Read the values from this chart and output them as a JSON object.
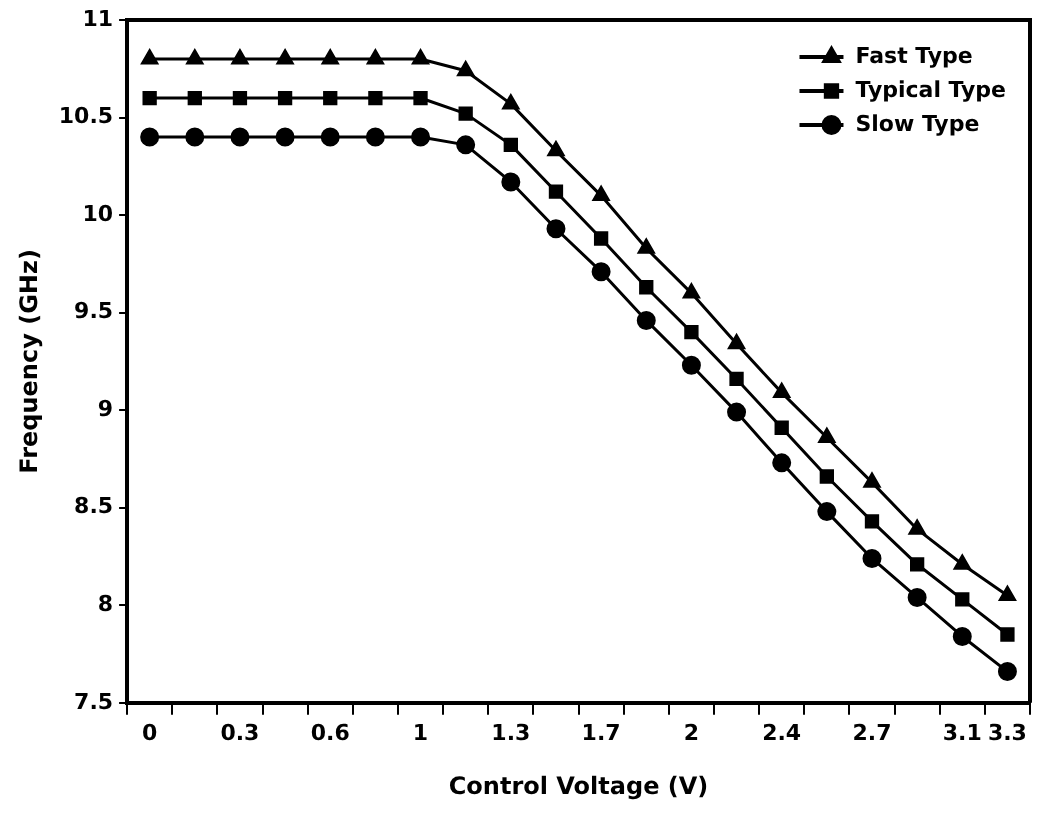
{
  "chart_data": {
    "type": "line",
    "xlabel": "Control Voltage (V)",
    "ylabel": "Frequency (GHz)",
    "categories": [
      "0",
      null,
      "0.3",
      null,
      "0.6",
      null,
      "1",
      null,
      "1.3",
      null,
      "1.7",
      null,
      "2",
      null,
      "2.4",
      null,
      "2.7",
      null,
      "3.1",
      "3.3"
    ],
    "series": [
      {
        "name": "Fast Type",
        "color": "#000000",
        "marker": "triangle",
        "values": [
          10.8,
          10.8,
          10.8,
          10.8,
          10.8,
          10.8,
          10.8,
          10.74,
          10.57,
          10.33,
          10.1,
          9.83,
          9.6,
          9.34,
          9.09,
          8.86,
          8.63,
          8.39,
          8.21,
          8.05
        ]
      },
      {
        "name": "Typical Type",
        "color": "#000000",
        "marker": "square",
        "values": [
          10.6,
          10.6,
          10.6,
          10.6,
          10.6,
          10.6,
          10.6,
          10.52,
          10.36,
          10.12,
          9.88,
          9.63,
          9.4,
          9.16,
          8.91,
          8.66,
          8.43,
          8.21,
          8.03,
          7.85
        ]
      },
      {
        "name": "Slow Type",
        "color": "#000000",
        "marker": "circle",
        "values": [
          10.4,
          10.4,
          10.4,
          10.4,
          10.4,
          10.4,
          10.4,
          10.36,
          10.17,
          9.93,
          9.71,
          9.46,
          9.23,
          8.99,
          8.73,
          8.48,
          8.24,
          8.04,
          7.84,
          7.66
        ]
      }
    ],
    "ylim": [
      7.5,
      11
    ],
    "yticks": [
      7.5,
      8,
      8.5,
      9,
      9.5,
      10,
      10.5,
      11
    ],
    "grid": false,
    "legend": "top right",
    "line_style": "solid"
  }
}
